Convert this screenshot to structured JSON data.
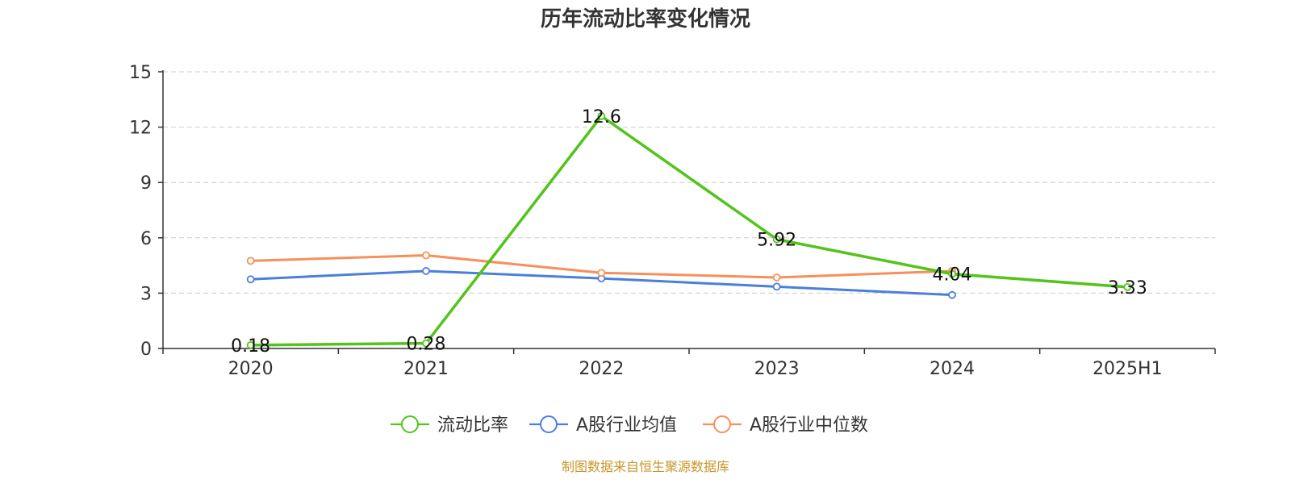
{
  "chart_data": {
    "type": "line",
    "title": "历年流动比率变化情况",
    "categories": [
      "2020",
      "2021",
      "2022",
      "2023",
      "2024",
      "2025H1"
    ],
    "ylim": [
      0,
      15
    ],
    "yticks": [
      0,
      3,
      6,
      9,
      12,
      15
    ],
    "grid": true,
    "legend_position": "bottom",
    "series": [
      {
        "name": "流动比率",
        "color": "#52c41a",
        "values": [
          0.18,
          0.28,
          12.6,
          5.92,
          4.04,
          3.33
        ],
        "labels": [
          "0.18",
          "0.28",
          "12.6",
          "5.92",
          "4.04",
          "3.33"
        ]
      },
      {
        "name": "A股行业均值",
        "color": "#4a7fdb",
        "values": [
          3.75,
          4.2,
          3.8,
          3.35,
          2.9,
          null
        ]
      },
      {
        "name": "A股行业中位数",
        "color": "#f78f5a",
        "values": [
          4.75,
          5.05,
          4.1,
          3.85,
          4.2,
          null
        ]
      }
    ],
    "source": "制图数据来自恒生聚源数据库"
  }
}
